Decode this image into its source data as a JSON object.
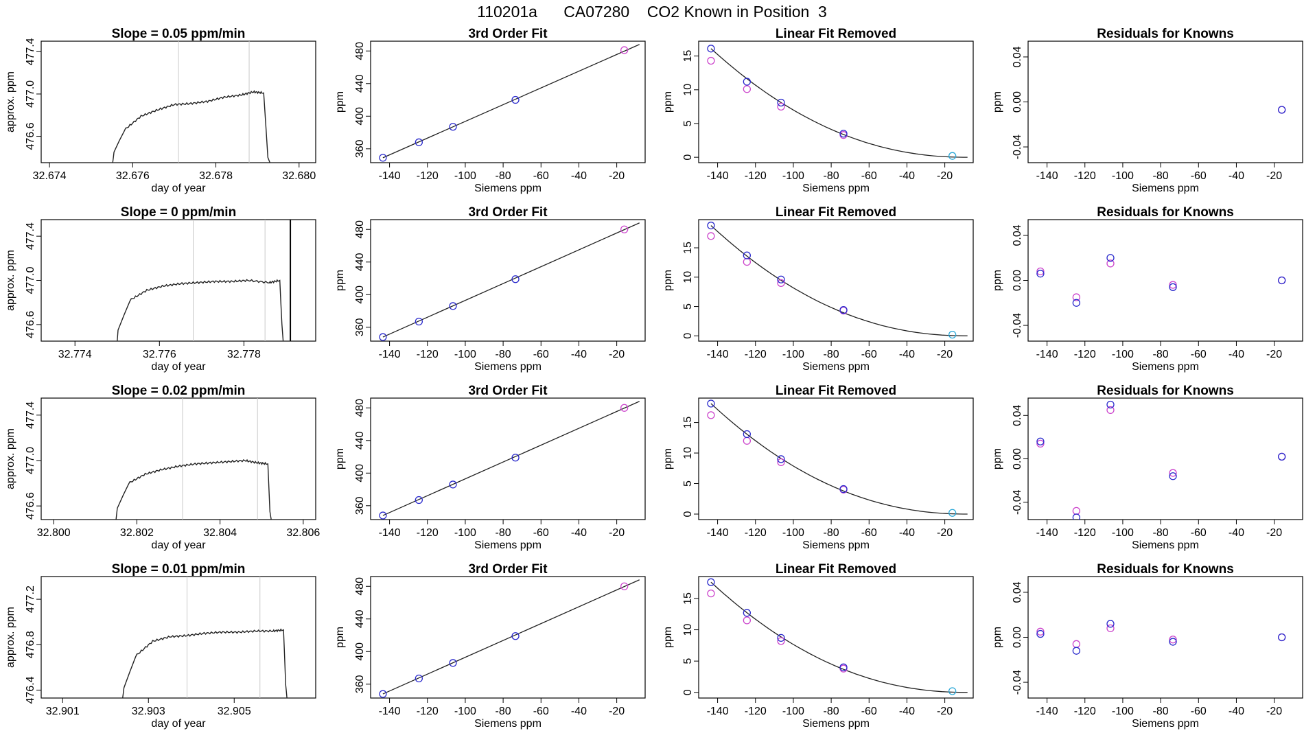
{
  "page": {
    "title": "110201a      CA07280    CO2 Known in Position  3"
  },
  "colors": {
    "axis": "#000000",
    "line": "#222222",
    "vline": "#c8c8c8",
    "known_point": "#2a2acc",
    "magenta_point": "#cc44cc",
    "zero_point": "#2aa8d8"
  },
  "chart_data": [
    {
      "panel": "timeseries",
      "type": "line",
      "title": "Slope =  0.05  ppm/min",
      "xlabel": "day of year",
      "ylabel": "approx. ppm",
      "xlim": [
        32.6738,
        32.6804
      ],
      "ylim": [
        476.35,
        477.5
      ],
      "xticks": [
        32.674,
        32.676,
        32.678,
        32.68
      ],
      "xticklabels": [
        "32.674",
        "32.676",
        "32.678",
        "32.680"
      ],
      "yticks": [
        476.6,
        477.0,
        477.4
      ],
      "yticklabels": [
        "476.6",
        "477.0",
        "477.4"
      ],
      "vlines": [
        32.6771,
        32.6788
      ],
      "x": [
        32.67552,
        32.67555,
        32.6758,
        32.6762,
        32.6766,
        32.677,
        32.6774,
        32.6778,
        32.6782,
        32.6786,
        32.6789,
        32.67915,
        32.67925,
        32.6793
      ],
      "y": [
        476.35,
        476.45,
        476.66,
        476.79,
        476.85,
        476.9,
        476.91,
        476.93,
        476.97,
        476.99,
        477.02,
        477.01,
        476.4,
        476.35
      ]
    },
    {
      "panel": "fit",
      "type": "scatter",
      "title": "3rd Order Fit",
      "xlabel": "Siemens ppm",
      "ylabel": "ppm",
      "xlim": [
        -150,
        -5
      ],
      "ylim": [
        343,
        492
      ],
      "xticks": [
        -140,
        -120,
        -100,
        -80,
        -60,
        -40,
        -20
      ],
      "xticklabels": [
        "-140",
        "-120",
        "-100",
        "-80",
        "-60",
        "-40",
        "-20"
      ],
      "yticks": [
        360,
        400,
        440,
        480
      ],
      "yticklabels": [
        "360",
        "400",
        "440",
        "480"
      ],
      "curve": {
        "x": [
          -143.5,
          -8
        ],
        "y": [
          349,
          488
        ]
      },
      "points_blue": {
        "x": [
          -143.5,
          -124.5,
          -106.5,
          -73.5
        ],
        "y": [
          349,
          368,
          387,
          420
        ]
      },
      "points_magenta": {
        "x": [
          -16
        ],
        "y": [
          481
        ]
      }
    },
    {
      "panel": "linear_removed",
      "type": "scatter",
      "title": "Linear Fit Removed",
      "xlabel": "Siemens ppm",
      "ylabel": "ppm",
      "xlim": [
        -150,
        -5
      ],
      "ylim": [
        -0.8,
        17.2
      ],
      "xticks": [
        -140,
        -120,
        -100,
        -80,
        -60,
        -40,
        -20
      ],
      "xticklabels": [
        "-140",
        "-120",
        "-100",
        "-80",
        "-60",
        "-40",
        "-20"
      ],
      "yticks": [
        0,
        5,
        10,
        15
      ],
      "yticklabels": [
        "0",
        "5",
        "10",
        "15"
      ],
      "curve": {
        "x0": -8,
        "a": 16.1,
        "x_start": -143.5
      },
      "points_blue": {
        "x": [
          -143.5,
          -124.5,
          -106.5,
          -73.5
        ],
        "y": [
          16.1,
          11.2,
          8.1,
          3.5
        ]
      },
      "points_magenta": {
        "x": [
          -143.5,
          -124.5,
          -106.5,
          -73.5
        ],
        "y": [
          14.3,
          10.1,
          7.5,
          3.3
        ]
      },
      "points_zero": {
        "x": [
          -16
        ],
        "y": [
          0.2
        ]
      }
    },
    {
      "panel": "residuals",
      "type": "scatter",
      "title": "Residuals for Knowns",
      "xlabel": "Siemens ppm",
      "ylabel": "ppm",
      "xlim": [
        -150,
        -5
      ],
      "ylim": [
        -0.054,
        0.054
      ],
      "xticks": [
        -140,
        -120,
        -100,
        -80,
        -60,
        -40,
        -20
      ],
      "xticklabels": [
        "-140",
        "-120",
        "-100",
        "-80",
        "-60",
        "-40",
        "-20"
      ],
      "yticks": [
        -0.04,
        0.0,
        0.04
      ],
      "yticklabels": [
        "-0.04",
        "0.00",
        "0.04"
      ],
      "points_blue": {
        "x": [
          -16
        ],
        "y": [
          -0.007
        ]
      },
      "points_magenta": {
        "x": [
          -16
        ],
        "y": [
          -0.007
        ]
      }
    },
    {
      "panel": "timeseries",
      "type": "line",
      "title": "Slope =  0  ppm/min",
      "xlabel": "day of year",
      "ylabel": "approx. ppm",
      "xlim": [
        32.7732,
        32.7797
      ],
      "ylim": [
        476.45,
        477.55
      ],
      "xticks": [
        32.774,
        32.776,
        32.778
      ],
      "xticklabels": [
        "32.774",
        "32.776",
        "32.778"
      ],
      "yticks": [
        476.6,
        477.0,
        477.4
      ],
      "yticklabels": [
        "476.6",
        "477.0",
        "477.4"
      ],
      "vlines": [
        32.7768,
        32.7785
      ],
      "x": [
        32.775,
        32.77502,
        32.7753,
        32.7757,
        32.7761,
        32.7765,
        32.7769,
        32.7773,
        32.7777,
        32.7781,
        32.7786,
        32.77885,
        32.7789,
        32.77893
      ],
      "y": [
        476.45,
        476.55,
        476.82,
        476.91,
        476.95,
        476.97,
        476.98,
        476.99,
        476.99,
        477.0,
        476.98,
        477.0,
        476.6,
        476.45
      ],
      "extra_vline": 32.7791
    },
    {
      "panel": "fit",
      "type": "scatter",
      "title": "3rd Order Fit",
      "xlabel": "Siemens ppm",
      "ylabel": "ppm",
      "xlim": [
        -150,
        -5
      ],
      "ylim": [
        343,
        492
      ],
      "xticks": [
        -140,
        -120,
        -100,
        -80,
        -60,
        -40,
        -20
      ],
      "xticklabels": [
        "-140",
        "-120",
        "-100",
        "-80",
        "-60",
        "-40",
        "-20"
      ],
      "yticks": [
        360,
        400,
        440,
        480
      ],
      "yticklabels": [
        "360",
        "400",
        "440",
        "480"
      ],
      "curve": {
        "x": [
          -143.5,
          -8
        ],
        "y": [
          348,
          488
        ]
      },
      "points_blue": {
        "x": [
          -143.5,
          -124.5,
          -106.5,
          -73.5
        ],
        "y": [
          348,
          367,
          386,
          419
        ]
      },
      "points_magenta": {
        "x": [
          -16
        ],
        "y": [
          480
        ]
      }
    },
    {
      "panel": "linear_removed",
      "type": "scatter",
      "title": "Linear Fit Removed",
      "xlabel": "Siemens ppm",
      "ylabel": "ppm",
      "xlim": [
        -150,
        -5
      ],
      "ylim": [
        -0.9,
        19.8
      ],
      "xticks": [
        -140,
        -120,
        -100,
        -80,
        -60,
        -40,
        -20
      ],
      "xticklabels": [
        "-140",
        "-120",
        "-100",
        "-80",
        "-60",
        "-40",
        "-20"
      ],
      "yticks": [
        0,
        5,
        10,
        15
      ],
      "yticklabels": [
        "0",
        "5",
        "10",
        "15"
      ],
      "curve": {
        "x0": -8,
        "a": 18.8,
        "x_start": -143.5
      },
      "points_blue": {
        "x": [
          -143.5,
          -124.5,
          -106.5,
          -73.5
        ],
        "y": [
          18.8,
          13.7,
          9.6,
          4.4
        ]
      },
      "points_magenta": {
        "x": [
          -143.5,
          -124.5,
          -106.5,
          -73.5
        ],
        "y": [
          17.0,
          12.6,
          9.0,
          4.3
        ]
      },
      "points_zero": {
        "x": [
          -16
        ],
        "y": [
          0.2
        ]
      }
    },
    {
      "panel": "residuals",
      "type": "scatter",
      "title": "Residuals for Knowns",
      "xlabel": "Siemens ppm",
      "ylabel": "ppm",
      "xlim": [
        -150,
        -5
      ],
      "ylim": [
        -0.054,
        0.054
      ],
      "xticks": [
        -140,
        -120,
        -100,
        -80,
        -60,
        -40,
        -20
      ],
      "xticklabels": [
        "-140",
        "-120",
        "-100",
        "-80",
        "-60",
        "-40",
        "-20"
      ],
      "yticks": [
        -0.04,
        0.0,
        0.04
      ],
      "yticklabels": [
        "-0.04",
        "0.00",
        "0.04"
      ],
      "points_blue": {
        "x": [
          -143.5,
          -124.5,
          -106.5,
          -73.5,
          -16
        ],
        "y": [
          0.006,
          -0.02,
          0.02,
          -0.006,
          0.0
        ]
      },
      "points_magenta": {
        "x": [
          -143.5,
          -124.5,
          -106.5,
          -73.5,
          -16
        ],
        "y": [
          0.008,
          -0.015,
          0.015,
          -0.004,
          0.0
        ]
      }
    },
    {
      "panel": "timeseries",
      "type": "line",
      "title": "Slope =  0.02  ppm/min",
      "xlabel": "day of year",
      "ylabel": "approx. ppm",
      "xlim": [
        32.7997,
        32.8063
      ],
      "ylim": [
        476.48,
        477.55
      ],
      "xticks": [
        32.8,
        32.802,
        32.804,
        32.806
      ],
      "xticklabels": [
        "32.800",
        "32.802",
        "32.804",
        "32.806"
      ],
      "yticks": [
        476.6,
        477.0,
        477.4
      ],
      "yticklabels": [
        "476.6",
        "477.0",
        "477.4"
      ],
      "vlines": [
        32.8031,
        32.8049
      ],
      "x": [
        32.8015,
        32.80153,
        32.8018,
        32.8022,
        32.8026,
        32.803,
        32.8034,
        32.8038,
        32.8042,
        32.8046,
        32.8049,
        32.80515,
        32.8052,
        32.80523
      ],
      "y": [
        476.48,
        476.58,
        476.8,
        476.88,
        476.92,
        476.95,
        476.97,
        476.98,
        476.99,
        477.0,
        476.98,
        476.97,
        476.55,
        476.48
      ]
    },
    {
      "panel": "fit",
      "type": "scatter",
      "title": "3rd Order Fit",
      "xlabel": "Siemens ppm",
      "ylabel": "ppm",
      "xlim": [
        -150,
        -5
      ],
      "ylim": [
        343,
        492
      ],
      "xticks": [
        -140,
        -120,
        -100,
        -80,
        -60,
        -40,
        -20
      ],
      "xticklabels": [
        "-140",
        "-120",
        "-100",
        "-80",
        "-60",
        "-40",
        "-20"
      ],
      "yticks": [
        360,
        400,
        440,
        480
      ],
      "yticklabels": [
        "360",
        "400",
        "440",
        "480"
      ],
      "curve": {
        "x": [
          -143.5,
          -8
        ],
        "y": [
          348,
          488
        ]
      },
      "points_blue": {
        "x": [
          -143.5,
          -124.5,
          -106.5,
          -73.5
        ],
        "y": [
          348,
          367,
          386,
          419
        ]
      },
      "points_magenta": {
        "x": [
          -16
        ],
        "y": [
          480
        ]
      }
    },
    {
      "panel": "linear_removed",
      "type": "scatter",
      "title": "Linear Fit Removed",
      "xlabel": "Siemens ppm",
      "ylabel": "ppm",
      "xlim": [
        -150,
        -5
      ],
      "ylim": [
        -0.9,
        19.0
      ],
      "xticks": [
        -140,
        -120,
        -100,
        -80,
        -60,
        -40,
        -20
      ],
      "xticklabels": [
        "-140",
        "-120",
        "-100",
        "-80",
        "-60",
        "-40",
        "-20"
      ],
      "yticks": [
        0,
        5,
        10,
        15
      ],
      "yticklabels": [
        "0",
        "5",
        "10",
        "15"
      ],
      "curve": {
        "x0": -8,
        "a": 18.1,
        "x_start": -143.5
      },
      "points_blue": {
        "x": [
          -143.5,
          -124.5,
          -106.5,
          -73.5
        ],
        "y": [
          18.1,
          13.1,
          9.0,
          4.1
        ]
      },
      "points_magenta": {
        "x": [
          -143.5,
          -124.5,
          -106.5,
          -73.5
        ],
        "y": [
          16.2,
          12.0,
          8.5,
          4.0
        ]
      },
      "points_zero": {
        "x": [
          -16
        ],
        "y": [
          0.2
        ]
      }
    },
    {
      "panel": "residuals",
      "type": "scatter",
      "title": "Residuals for Knowns",
      "xlabel": "Siemens ppm",
      "ylabel": "ppm",
      "xlim": [
        -150,
        -5
      ],
      "ylim": [
        -0.056,
        0.056
      ],
      "xticks": [
        -140,
        -120,
        -100,
        -80,
        -60,
        -40,
        -20
      ],
      "xticklabels": [
        "-140",
        "-120",
        "-100",
        "-80",
        "-60",
        "-40",
        "-20"
      ],
      "yticks": [
        -0.04,
        0.0,
        0.04
      ],
      "yticklabels": [
        "-0.04",
        "0.00",
        "0.04"
      ],
      "points_blue": {
        "x": [
          -143.5,
          -124.5,
          -106.5,
          -73.5,
          -16
        ],
        "y": [
          0.016,
          -0.054,
          0.05,
          -0.016,
          0.002
        ]
      },
      "points_magenta": {
        "x": [
          -143.5,
          -124.5,
          -106.5,
          -73.5,
          -16
        ],
        "y": [
          0.014,
          -0.048,
          0.045,
          -0.013,
          0.002
        ]
      }
    },
    {
      "panel": "timeseries",
      "type": "line",
      "title": "Slope =  0.01  ppm/min",
      "xlabel": "day of year",
      "ylabel": "approx. ppm",
      "xlim": [
        32.9005,
        32.9069
      ],
      "ylim": [
        476.33,
        477.4
      ],
      "xticks": [
        32.901,
        32.903,
        32.905
      ],
      "xticklabels": [
        "32.901",
        "32.903",
        "32.905"
      ],
      "yticks": [
        476.4,
        476.8,
        477.2
      ],
      "yticklabels": [
        "476.4",
        "476.8",
        "477.2"
      ],
      "vlines": [
        32.9039,
        32.9056
      ],
      "x": [
        32.9024,
        32.90243,
        32.9027,
        32.9031,
        32.9035,
        32.9039,
        32.9043,
        32.9047,
        32.9051,
        32.9055,
        32.9059,
        32.90615,
        32.9062,
        32.90623
      ],
      "y": [
        476.33,
        476.42,
        476.7,
        476.83,
        476.87,
        476.88,
        476.9,
        476.91,
        476.91,
        476.92,
        476.92,
        476.93,
        476.45,
        476.33
      ]
    },
    {
      "panel": "fit",
      "type": "scatter",
      "title": "3rd Order Fit",
      "xlabel": "Siemens ppm",
      "ylabel": "ppm",
      "xlim": [
        -150,
        -5
      ],
      "ylim": [
        343,
        492
      ],
      "xticks": [
        -140,
        -120,
        -100,
        -80,
        -60,
        -40,
        -20
      ],
      "xticklabels": [
        "-140",
        "-120",
        "-100",
        "-80",
        "-60",
        "-40",
        "-20"
      ],
      "yticks": [
        360,
        400,
        440,
        480
      ],
      "yticklabels": [
        "360",
        "400",
        "440",
        "480"
      ],
      "curve": {
        "x": [
          -143.5,
          -8
        ],
        "y": [
          348,
          488
        ]
      },
      "points_blue": {
        "x": [
          -143.5,
          -124.5,
          -106.5,
          -73.5
        ],
        "y": [
          348,
          367,
          386,
          419
        ]
      },
      "points_magenta": {
        "x": [
          -16
        ],
        "y": [
          480
        ]
      }
    },
    {
      "panel": "linear_removed",
      "type": "scatter",
      "title": "Linear Fit Removed",
      "xlabel": "Siemens ppm",
      "ylabel": "ppm",
      "xlim": [
        -150,
        -5
      ],
      "ylim": [
        -0.9,
        18.5
      ],
      "xticks": [
        -140,
        -120,
        -100,
        -80,
        -60,
        -40,
        -20
      ],
      "xticklabels": [
        "-140",
        "-120",
        "-100",
        "-80",
        "-60",
        "-40",
        "-20"
      ],
      "yticks": [
        0,
        5,
        10,
        15
      ],
      "yticklabels": [
        "0",
        "5",
        "10",
        "15"
      ],
      "curve": {
        "x0": -8,
        "a": 17.6,
        "x_start": -143.5
      },
      "points_blue": {
        "x": [
          -143.5,
          -124.5,
          -106.5,
          -73.5
        ],
        "y": [
          17.6,
          12.7,
          8.7,
          4.0
        ]
      },
      "points_magenta": {
        "x": [
          -143.5,
          -124.5,
          -106.5,
          -73.5
        ],
        "y": [
          15.8,
          11.5,
          8.2,
          3.8
        ]
      },
      "points_zero": {
        "x": [
          -16
        ],
        "y": [
          0.2
        ]
      }
    },
    {
      "panel": "residuals",
      "type": "scatter",
      "title": "Residuals for Knowns",
      "xlabel": "Siemens ppm",
      "ylabel": "ppm",
      "xlim": [
        -150,
        -5
      ],
      "ylim": [
        -0.054,
        0.054
      ],
      "xticks": [
        -140,
        -120,
        -100,
        -80,
        -60,
        -40,
        -20
      ],
      "xticklabels": [
        "-140",
        "-120",
        "-100",
        "-80",
        "-60",
        "-40",
        "-20"
      ],
      "yticks": [
        -0.04,
        0.0,
        0.04
      ],
      "yticklabels": [
        "-0.04",
        "0.00",
        "0.04"
      ],
      "points_blue": {
        "x": [
          -143.5,
          -124.5,
          -106.5,
          -73.5,
          -16
        ],
        "y": [
          0.003,
          -0.012,
          0.012,
          -0.004,
          0.0
        ]
      },
      "points_magenta": {
        "x": [
          -143.5,
          -124.5,
          -106.5,
          -73.5,
          -16
        ],
        "y": [
          0.005,
          -0.006,
          0.008,
          -0.002,
          0.0
        ]
      }
    }
  ]
}
